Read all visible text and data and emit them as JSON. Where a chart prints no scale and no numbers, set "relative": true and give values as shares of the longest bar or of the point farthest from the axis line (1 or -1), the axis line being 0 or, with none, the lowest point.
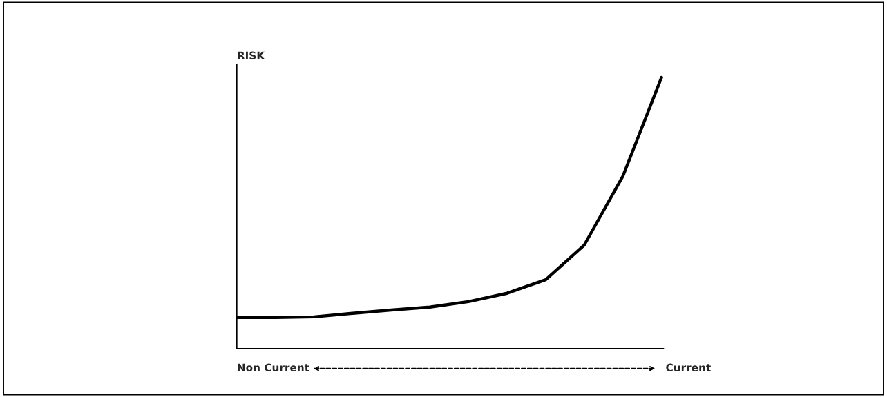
{
  "chart_data": {
    "type": "line",
    "relative": true,
    "ylabel": "RISK",
    "annotations": [
      "Non Current",
      "Current"
    ],
    "categories": [
      null,
      null,
      null,
      null,
      null,
      null,
      null,
      null,
      null,
      null,
      null,
      null
    ],
    "series": [
      {
        "color": "#000000",
        "values": [
          0.115,
          0.115,
          0.117,
          0.13,
          0.142,
          0.153,
          0.173,
          0.204,
          0.254,
          0.382,
          0.636,
          1.0
        ]
      }
    ]
  }
}
